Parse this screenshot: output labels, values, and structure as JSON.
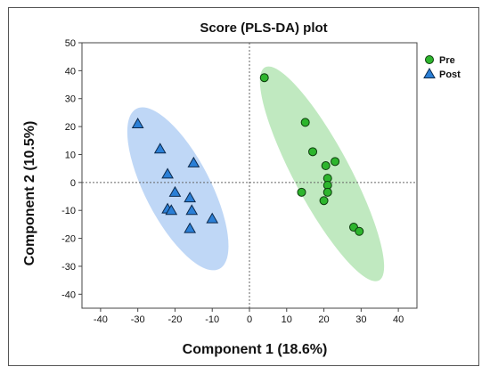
{
  "chart_data": {
    "type": "scatter",
    "title": "Score (PLS-DA) plot",
    "xlabel": "Component 1 (18.6%)",
    "ylabel": "Component 2 (10.5%)",
    "xlim": [
      -45,
      45
    ],
    "ylim": [
      -45,
      50
    ],
    "xticks": [
      -40,
      -30,
      -20,
      -10,
      0,
      10,
      20,
      30,
      40
    ],
    "yticks": [
      -40,
      -30,
      -20,
      -10,
      0,
      10,
      20,
      30,
      40,
      50
    ],
    "grid": false,
    "reference_lines": {
      "x": 0,
      "y": 0,
      "style": "dotted"
    },
    "legend_position": "top-right",
    "series": [
      {
        "name": "Pre",
        "marker": "circle",
        "color": "#2db52d",
        "ellipse_color": "#bde8bd",
        "points": [
          [
            4,
            37.5
          ],
          [
            15,
            21.5
          ],
          [
            17,
            11
          ],
          [
            23,
            7.5
          ],
          [
            20.5,
            6
          ],
          [
            21,
            1.5
          ],
          [
            21,
            -1
          ],
          [
            14,
            -3.5
          ],
          [
            21,
            -3.5
          ],
          [
            20,
            -6.5
          ],
          [
            28,
            -16
          ],
          [
            29.5,
            -17.5
          ]
        ]
      },
      {
        "name": "Post",
        "marker": "triangle",
        "color": "#2b7fd6",
        "ellipse_color": "#bcd5f5",
        "points": [
          [
            -30,
            21
          ],
          [
            -24,
            12
          ],
          [
            -15,
            7
          ],
          [
            -22,
            3
          ],
          [
            -20,
            -3.5
          ],
          [
            -16,
            -5.5
          ],
          [
            -22,
            -9.5
          ],
          [
            -21,
            -10
          ],
          [
            -15.5,
            -10
          ],
          [
            -10,
            -13
          ],
          [
            -16,
            -16.5
          ]
        ]
      }
    ]
  }
}
